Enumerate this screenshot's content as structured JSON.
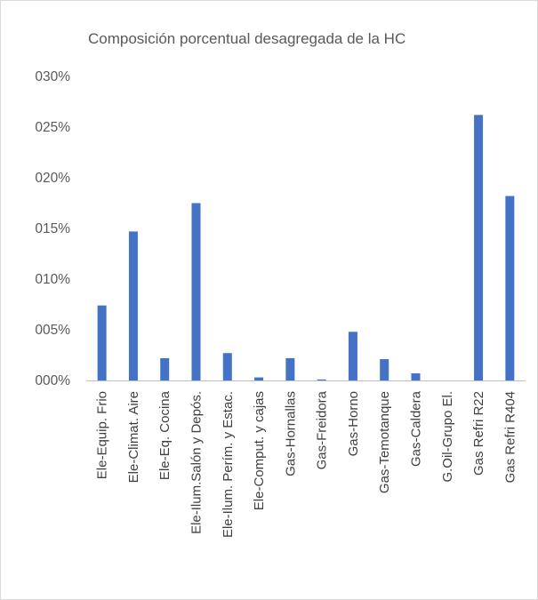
{
  "chart_data": {
    "type": "bar",
    "title": "Composición porcentual desagregada de la HC",
    "xlabel": "",
    "ylabel": "",
    "ylim": [
      0,
      0.3
    ],
    "yticks": [
      0,
      0.05,
      0.1,
      0.15,
      0.2,
      0.25,
      0.3
    ],
    "ytick_labels": [
      "000%",
      "005%",
      "010%",
      "015%",
      "020%",
      "025%",
      "030%"
    ],
    "grid": false,
    "legend": "none",
    "bar_color": "#4472c4",
    "categories": [
      "Ele-Equip. Frio",
      "Ele-Climat. Aire",
      "Ele-Eq. Cocina",
      "Ele-Ilum.Salón y Depós.",
      "Ele-Ilum. Perím. y Estac.",
      "Ele-Comput. y cajas",
      "Gas-Hornallas",
      "Gas-Freidora",
      "Gas-Horno",
      "Gas-Temotanque",
      "Gas-Caldera",
      "G.Oil-Grupo El.",
      "Gas Refri R22",
      "Gas Refri R404"
    ],
    "values": [
      0.074,
      0.147,
      0.022,
      0.175,
      0.027,
      0.003,
      0.022,
      0.001,
      0.048,
      0.021,
      0.007,
      0.0,
      0.262,
      0.182
    ]
  }
}
